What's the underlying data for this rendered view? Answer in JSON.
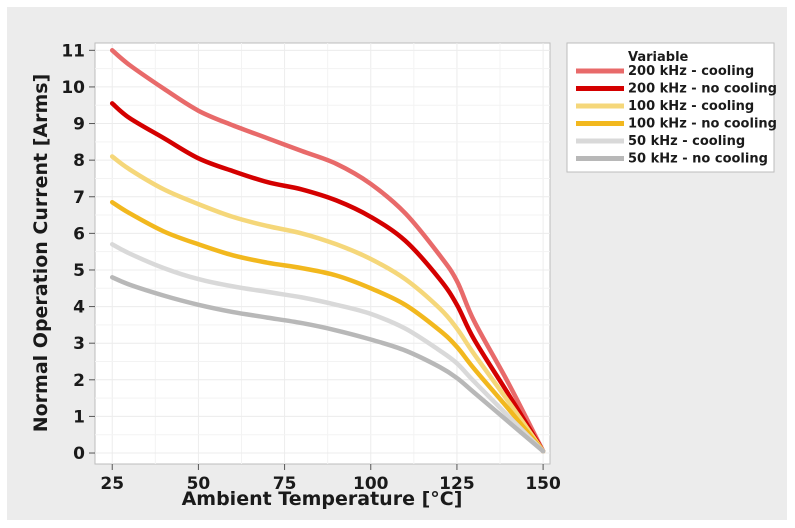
{
  "chart_data": {
    "type": "line",
    "xlabel": "Ambient Temperature [°C]",
    "ylabel": "Normal Operation Current [Arms]",
    "xlim": [
      20,
      152
    ],
    "ylim": [
      -0.3,
      11.2
    ],
    "xticks": [
      25,
      50,
      75,
      100,
      125,
      150
    ],
    "yticks": [
      0,
      1,
      2,
      3,
      4,
      5,
      6,
      7,
      8,
      9,
      10,
      11
    ],
    "grid": true,
    "legend": {
      "title": "Variable",
      "position": "right"
    },
    "x": [
      25,
      30,
      40,
      50,
      60,
      70,
      80,
      90,
      100,
      110,
      120,
      125,
      130,
      140,
      150
    ],
    "series": [
      {
        "name": "200 kHz - cooling",
        "color": "#e86a6a",
        "values": [
          11.0,
          10.6,
          9.95,
          9.35,
          8.95,
          8.6,
          8.25,
          7.9,
          7.35,
          6.55,
          5.4,
          4.7,
          3.6,
          1.9,
          0.05
        ]
      },
      {
        "name": "200 kHz - no cooling",
        "color": "#d40000",
        "values": [
          9.55,
          9.15,
          8.6,
          8.05,
          7.7,
          7.4,
          7.2,
          6.9,
          6.45,
          5.8,
          4.75,
          4.05,
          3.1,
          1.6,
          0.05
        ]
      },
      {
        "name": "100 kHz - cooling",
        "color": "#f5d77a",
        "values": [
          8.1,
          7.75,
          7.2,
          6.8,
          6.45,
          6.2,
          6.0,
          5.7,
          5.3,
          4.75,
          3.95,
          3.4,
          2.7,
          1.4,
          0.05
        ]
      },
      {
        "name": "100 kHz - no cooling",
        "color": "#f2b81e",
        "values": [
          6.85,
          6.55,
          6.05,
          5.7,
          5.4,
          5.2,
          5.05,
          4.85,
          4.5,
          4.05,
          3.35,
          2.9,
          2.3,
          1.2,
          0.05
        ]
      },
      {
        "name": "50 kHz - cooling",
        "color": "#d9d9d9",
        "values": [
          5.7,
          5.45,
          5.05,
          4.75,
          4.55,
          4.4,
          4.25,
          4.05,
          3.8,
          3.4,
          2.8,
          2.45,
          1.95,
          1.0,
          0.05
        ]
      },
      {
        "name": "50 kHz - no cooling",
        "color": "#b8b8b8",
        "values": [
          4.8,
          4.6,
          4.3,
          4.05,
          3.85,
          3.7,
          3.55,
          3.35,
          3.1,
          2.8,
          2.35,
          2.05,
          1.65,
          0.85,
          0.05
        ]
      }
    ]
  }
}
